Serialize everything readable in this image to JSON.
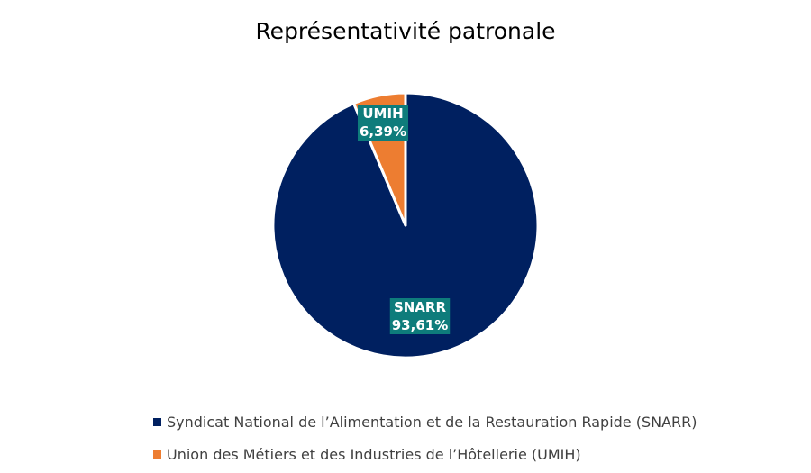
{
  "chart_data": {
    "type": "pie",
    "title": "Représentativité patronale",
    "slices": [
      {
        "label": "SNARR",
        "legend": "Syndicat National de l’Alimentation et de la Restauration Rapide (SNARR)",
        "value": 93.61,
        "value_label": "93,61%",
        "color": "#002060"
      },
      {
        "label": "UMIH",
        "legend": "Union des Métiers et des Industries de l’Hôtellerie (UMIH)",
        "value": 6.39,
        "value_label": "6,39%",
        "color": "#ED7D31"
      }
    ],
    "label_background": "#0E7C7B",
    "legend_position": "bottom"
  }
}
